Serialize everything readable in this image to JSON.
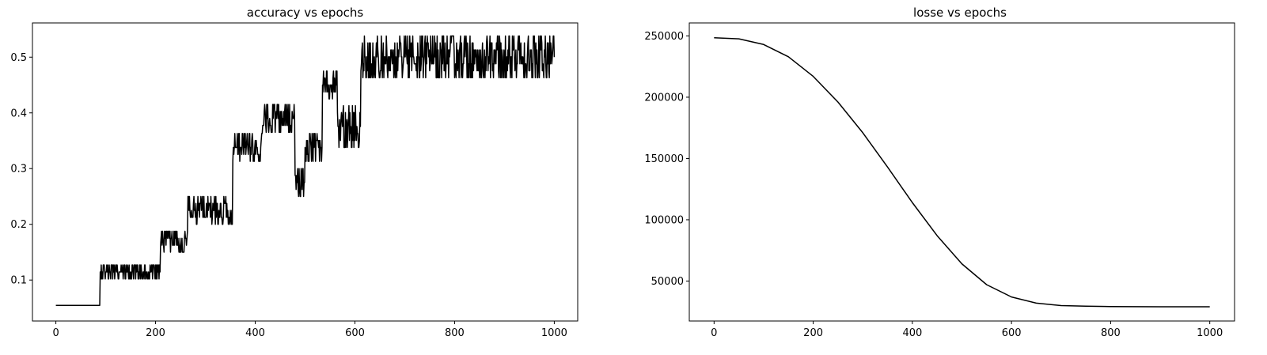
{
  "chart_data": [
    {
      "type": "line",
      "title": "accuracy vs epochs",
      "xlabel": "",
      "ylabel": "",
      "xlim": [
        -47,
        1047
      ],
      "ylim": [
        0.0265,
        0.5614
      ],
      "xticks": [
        0,
        200,
        400,
        600,
        800,
        1000
      ],
      "yticks": [
        0.1,
        0.2,
        0.3,
        0.4,
        0.5
      ],
      "grid": false,
      "line_color": "#000000",
      "noise": 0.0125,
      "levels": [
        {
          "x": [
            0,
            89
          ],
          "y": 0.055,
          "jitter": [
            -0.0005,
            0.0055
          ]
        },
        {
          "x": [
            89,
            210
          ],
          "y": 0.11,
          "jitter": [
            -0.008,
            0.014
          ]
        },
        {
          "x": [
            210,
            265
          ],
          "y": 0.16,
          "jitter": [
            -0.01,
            0.027
          ]
        },
        {
          "x": [
            265,
            355
          ],
          "y": 0.215,
          "jitter": [
            -0.015,
            0.035
          ]
        },
        {
          "x": [
            355,
            415
          ],
          "y": 0.325,
          "jitter": [
            -0.012,
            0.037
          ]
        },
        {
          "x": [
            415,
            480
          ],
          "y": 0.385,
          "jitter": [
            -0.02,
            0.027
          ]
        },
        {
          "x": [
            480,
            500
          ],
          "y": 0.28,
          "jitter": [
            -0.03,
            0.02
          ]
        },
        {
          "x": [
            500,
            535
          ],
          "y": 0.335,
          "jitter": [
            -0.022,
            0.03
          ]
        },
        {
          "x": [
            535,
            565
          ],
          "y": 0.445,
          "jitter": [
            -0.02,
            0.03
          ]
        },
        {
          "x": [
            565,
            612
          ],
          "y": 0.39,
          "jitter": [
            -0.052,
            0.024
          ]
        },
        {
          "x": [
            612,
            1000
          ],
          "y": 0.5,
          "jitter": [
            -0.037,
            0.038
          ]
        }
      ],
      "points": [
        [
          0,
          0.06
        ],
        [
          30,
          0.055
        ],
        [
          60,
          0.06
        ],
        [
          88,
          0.055
        ],
        [
          95,
          0.12
        ],
        [
          150,
          0.11
        ],
        [
          209,
          0.105
        ],
        [
          215,
          0.165
        ],
        [
          240,
          0.16
        ],
        [
          264,
          0.17
        ],
        [
          270,
          0.225
        ],
        [
          300,
          0.22
        ],
        [
          330,
          0.215
        ],
        [
          354,
          0.21
        ],
        [
          360,
          0.335
        ],
        [
          390,
          0.33
        ],
        [
          414,
          0.325
        ],
        [
          420,
          0.395
        ],
        [
          450,
          0.38
        ],
        [
          479,
          0.385
        ],
        [
          490,
          0.265
        ],
        [
          499,
          0.28
        ],
        [
          510,
          0.33
        ],
        [
          534,
          0.34
        ],
        [
          545,
          0.45
        ],
        [
          564,
          0.44
        ],
        [
          580,
          0.385
        ],
        [
          611,
          0.4
        ],
        [
          620,
          0.51
        ],
        [
          700,
          0.5
        ],
        [
          800,
          0.5
        ],
        [
          900,
          0.5
        ],
        [
          1000,
          0.51
        ]
      ]
    },
    {
      "type": "line",
      "title": "losse vs epochs",
      "xlabel": "",
      "ylabel": "",
      "xlim": [
        -50,
        1050
      ],
      "ylim": [
        17400,
        260600
      ],
      "xticks": [
        0,
        200,
        400,
        600,
        800,
        1000
      ],
      "yticks": [
        50000,
        100000,
        150000,
        200000,
        250000
      ],
      "grid": false,
      "line_color": "#000000",
      "points": [
        [
          0,
          248500
        ],
        [
          50,
          247600
        ],
        [
          100,
          243000
        ],
        [
          150,
          233000
        ],
        [
          200,
          217000
        ],
        [
          250,
          196000
        ],
        [
          300,
          171000
        ],
        [
          350,
          143000
        ],
        [
          400,
          114000
        ],
        [
          450,
          87000
        ],
        [
          500,
          64000
        ],
        [
          550,
          47000
        ],
        [
          600,
          37000
        ],
        [
          650,
          32000
        ],
        [
          700,
          30000
        ],
        [
          750,
          29500
        ],
        [
          800,
          29200
        ],
        [
          850,
          29100
        ],
        [
          900,
          29000
        ],
        [
          950,
          29000
        ],
        [
          1000,
          29000
        ]
      ]
    }
  ]
}
